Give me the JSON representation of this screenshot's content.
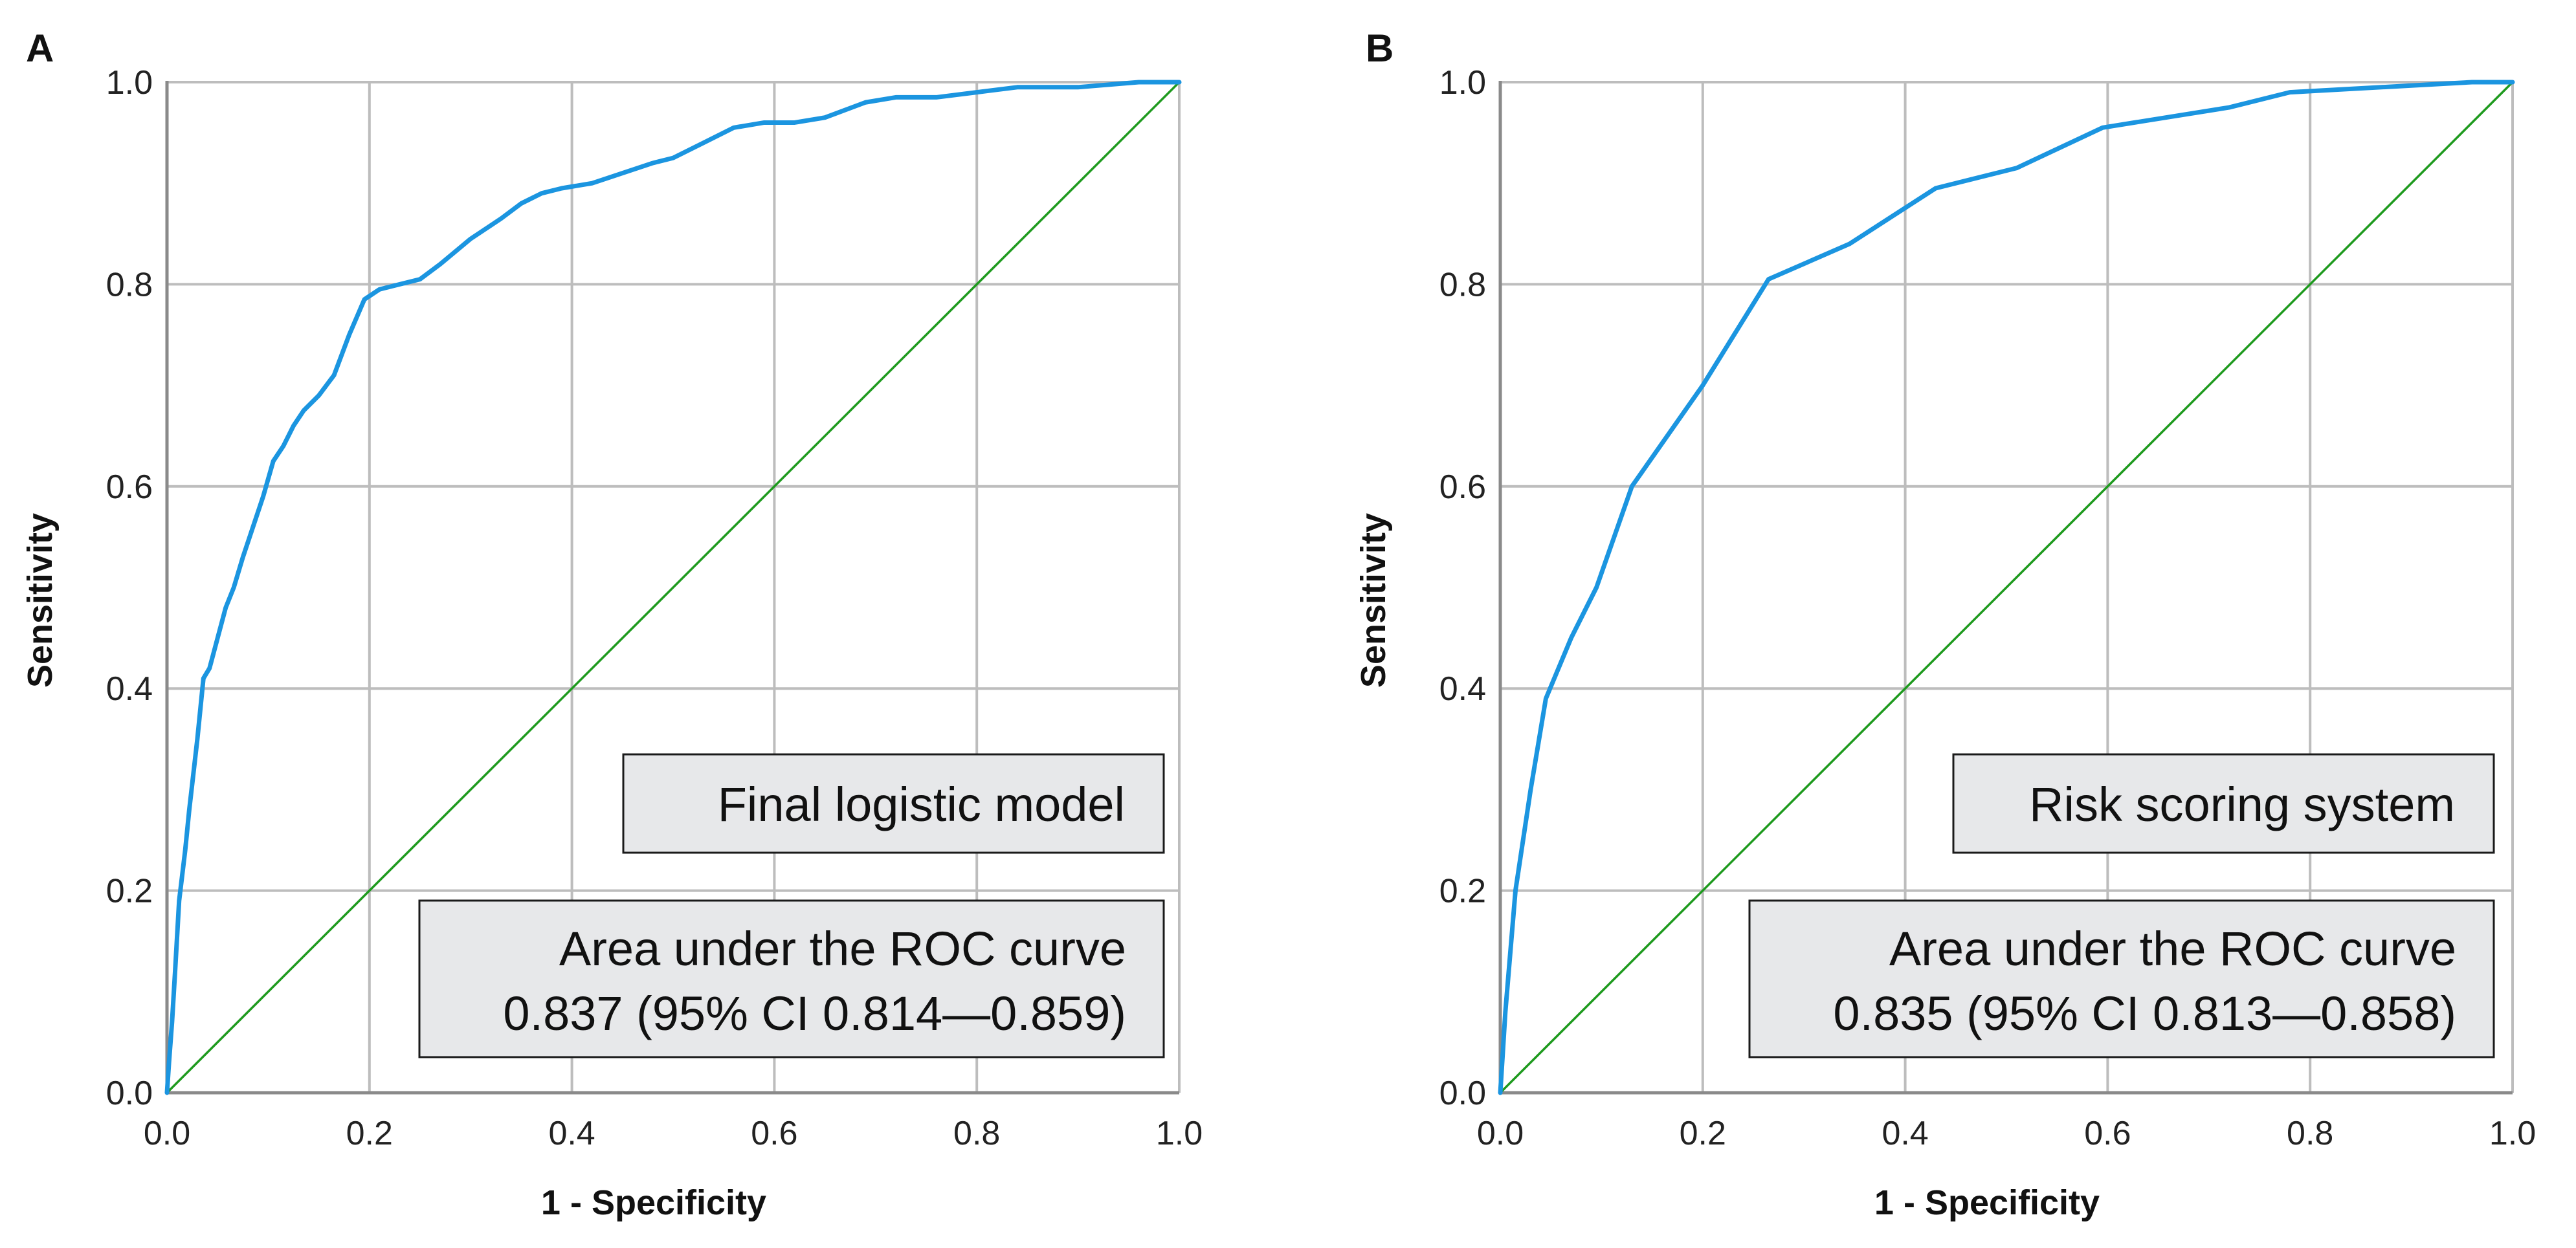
{
  "chart_data": [
    {
      "type": "line",
      "panel_label": "A",
      "model_label": "Final logistic model",
      "auc_title": "Area under the ROC curve",
      "auc_value": "0.837 (95% CI 0.814—0.859)",
      "xlabel": "1 - Specificity",
      "ylabel": "Sensitivity",
      "xlim": [
        0,
        1
      ],
      "ylim": [
        0,
        1
      ],
      "xticks": [
        "0.0",
        "0.2",
        "0.4",
        "0.6",
        "0.8",
        "1.0"
      ],
      "yticks": [
        "0.0",
        "0.2",
        "0.4",
        "0.6",
        "0.8",
        "1.0"
      ],
      "grid": true,
      "roc_color": "#1b95e0",
      "reference_color": "#1e9a1e",
      "series": [
        {
          "name": "ROC curve",
          "x": [
            0,
            0.002,
            0.005,
            0.008,
            0.012,
            0.018,
            0.022,
            0.03,
            0.036,
            0.042,
            0.05,
            0.058,
            0.066,
            0.075,
            0.085,
            0.095,
            0.105,
            0.115,
            0.125,
            0.135,
            0.15,
            0.165,
            0.18,
            0.195,
            0.21,
            0.23,
            0.25,
            0.27,
            0.3,
            0.315,
            0.33,
            0.35,
            0.37,
            0.39,
            0.42,
            0.45,
            0.48,
            0.5,
            0.53,
            0.56,
            0.59,
            0.62,
            0.65,
            0.69,
            0.72,
            0.76,
            0.8,
            0.84,
            0.9,
            0.96,
            1.0
          ],
          "y": [
            0,
            0.03,
            0.07,
            0.12,
            0.19,
            0.24,
            0.28,
            0.35,
            0.41,
            0.42,
            0.45,
            0.48,
            0.5,
            0.53,
            0.56,
            0.59,
            0.625,
            0.64,
            0.66,
            0.675,
            0.69,
            0.71,
            0.75,
            0.785,
            0.795,
            0.8,
            0.805,
            0.82,
            0.845,
            0.855,
            0.865,
            0.88,
            0.89,
            0.895,
            0.9,
            0.91,
            0.92,
            0.925,
            0.94,
            0.955,
            0.96,
            0.96,
            0.965,
            0.98,
            0.985,
            0.985,
            0.99,
            0.995,
            0.995,
            1.0,
            1.0
          ]
        },
        {
          "name": "Reference line",
          "x": [
            0,
            1
          ],
          "y": [
            0,
            1
          ]
        }
      ]
    },
    {
      "type": "line",
      "panel_label": "B",
      "model_label": "Risk scoring system",
      "auc_title": "Area under the ROC curve",
      "auc_value": "0.835 (95% CI 0.813—0.858)",
      "xlabel": "1 - Specificity",
      "ylabel": "Sensitivity",
      "xlim": [
        0,
        1
      ],
      "ylim": [
        0,
        1
      ],
      "xticks": [
        "0.0",
        "0.2",
        "0.4",
        "0.6",
        "0.8",
        "1.0"
      ],
      "yticks": [
        "0.0",
        "0.2",
        "0.4",
        "0.6",
        "0.8",
        "1.0"
      ],
      "grid": true,
      "roc_color": "#1b95e0",
      "reference_color": "#1e9a1e",
      "series": [
        {
          "name": "ROC curve",
          "x": [
            0,
            0.005,
            0.015,
            0.03,
            0.045,
            0.07,
            0.095,
            0.13,
            0.2,
            0.265,
            0.345,
            0.43,
            0.51,
            0.595,
            0.72,
            0.78,
            0.96,
            1.0
          ],
          "y": [
            0,
            0.08,
            0.2,
            0.3,
            0.39,
            0.45,
            0.5,
            0.6,
            0.7,
            0.805,
            0.84,
            0.895,
            0.915,
            0.955,
            0.975,
            0.99,
            1.0,
            1.0
          ]
        },
        {
          "name": "Reference line",
          "x": [
            0,
            1
          ],
          "y": [
            0,
            1
          ]
        }
      ]
    }
  ]
}
